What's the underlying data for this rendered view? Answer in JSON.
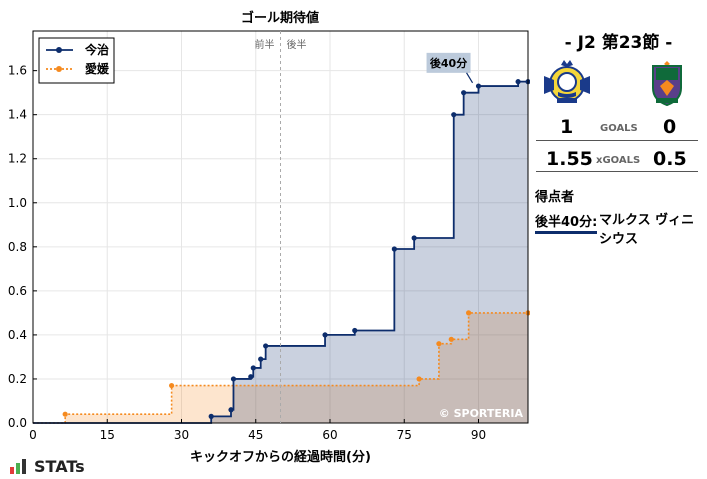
{
  "chart_data": {
    "type": "line",
    "title": "ゴール期待値",
    "xlabel": "キックオフからの経過時間(分)",
    "ylabel": "",
    "xlim": [
      0,
      100
    ],
    "ylim": [
      0,
      1.78
    ],
    "x_ticks": [
      0,
      15,
      30,
      45,
      60,
      75,
      90
    ],
    "y_ticks": [
      0.0,
      0.2,
      0.4,
      0.6,
      0.8,
      1.0,
      1.2,
      1.4,
      1.6
    ],
    "x_tick_labels": [
      "0",
      "15",
      "30",
      "45",
      "60",
      "75",
      "90"
    ],
    "y_tick_labels": [
      "0.0",
      "0.2",
      "0.4",
      "0.6",
      "0.8",
      "1.0",
      "1.2",
      "1.4",
      "1.6"
    ],
    "grid": true,
    "legend": "top-left",
    "halftime_line": 50,
    "halftime_labels": [
      "前半",
      "後半"
    ],
    "series": [
      {
        "name": "今治",
        "color": "#0d2d6c",
        "style": "solid",
        "x": [
          0,
          36,
          40,
          40.5,
          44,
          44.5,
          46,
          47,
          59,
          65,
          73,
          77,
          85,
          87,
          90,
          98,
          100
        ],
        "y": [
          0,
          0.03,
          0.06,
          0.2,
          0.21,
          0.25,
          0.29,
          0.35,
          0.4,
          0.42,
          0.79,
          0.84,
          1.4,
          1.5,
          1.53,
          1.55,
          1.55
        ]
      },
      {
        "name": "愛媛",
        "color": "#f58a1f",
        "style": "dotted",
        "x": [
          0,
          6.5,
          28,
          78,
          82,
          84.5,
          88,
          100
        ],
        "y": [
          0,
          0.04,
          0.17,
          0.2,
          0.36,
          0.38,
          0.5,
          0.5
        ]
      }
    ],
    "annotations": [
      {
        "text": "後40分",
        "x": 89,
        "y": 1.54,
        "color": "#bccadb"
      }
    ],
    "watermark": "© SPORTERIA"
  },
  "match": {
    "title": "- J2 第23節 -",
    "home_goals": "1",
    "away_goals": "0",
    "goals_label": "GOALS",
    "home_xg": "1.55",
    "away_xg": "0.5",
    "xg_label": "xGOALS",
    "scorers_heading": "得点者",
    "scorer_time": "後半40分:",
    "scorer_name": "マルクス ヴィニシウス"
  },
  "brand": "STATs"
}
